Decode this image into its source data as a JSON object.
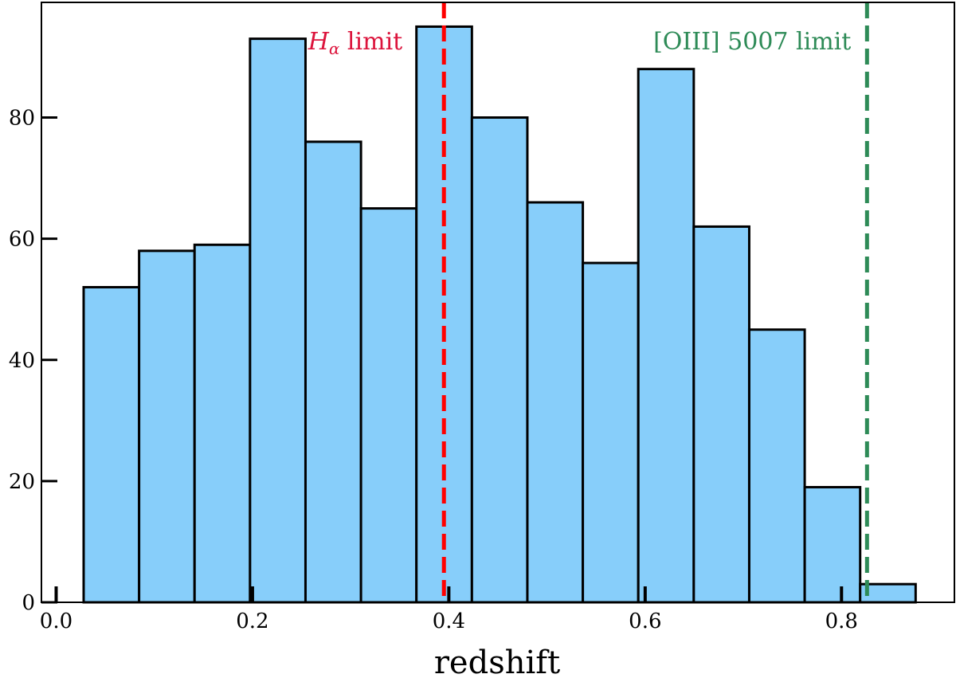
{
  "chart_data": {
    "type": "bar",
    "histogram": true,
    "title": "",
    "xlabel": "redshift",
    "ylabel": "",
    "xlim": [
      -0.015,
      0.915
    ],
    "ylim": [
      0,
      99
    ],
    "xticks": [
      "0.0",
      "0.2",
      "0.4",
      "0.6",
      "0.8"
    ],
    "yticks": [
      "0",
      "20",
      "40",
      "60",
      "80"
    ],
    "bin_edges": [
      0.028,
      0.0845,
      0.141,
      0.1975,
      0.254,
      0.3105,
      0.367,
      0.4235,
      0.48,
      0.5365,
      0.593,
      0.6495,
      0.706,
      0.7625,
      0.819,
      0.8755
    ],
    "values": [
      52,
      58,
      59,
      93,
      76,
      65,
      95,
      80,
      66,
      56,
      88,
      62,
      45,
      19,
      3
    ],
    "bar_color": "#87CEFA",
    "bar_edge_color": "#000000",
    "grid": false,
    "annotations": [
      {
        "name": "h-alpha-limit",
        "x": 0.395,
        "label_main": "H",
        "label_sub": "α",
        "label_suffix": " limit",
        "color": "#DC143C",
        "line_color": "#FF0000"
      },
      {
        "name": "oiii-5007-limit",
        "x": 0.826,
        "label": "[OIII] 5007 limit",
        "color": "#2E8B57",
        "line_color": "#2E8B57"
      }
    ]
  }
}
